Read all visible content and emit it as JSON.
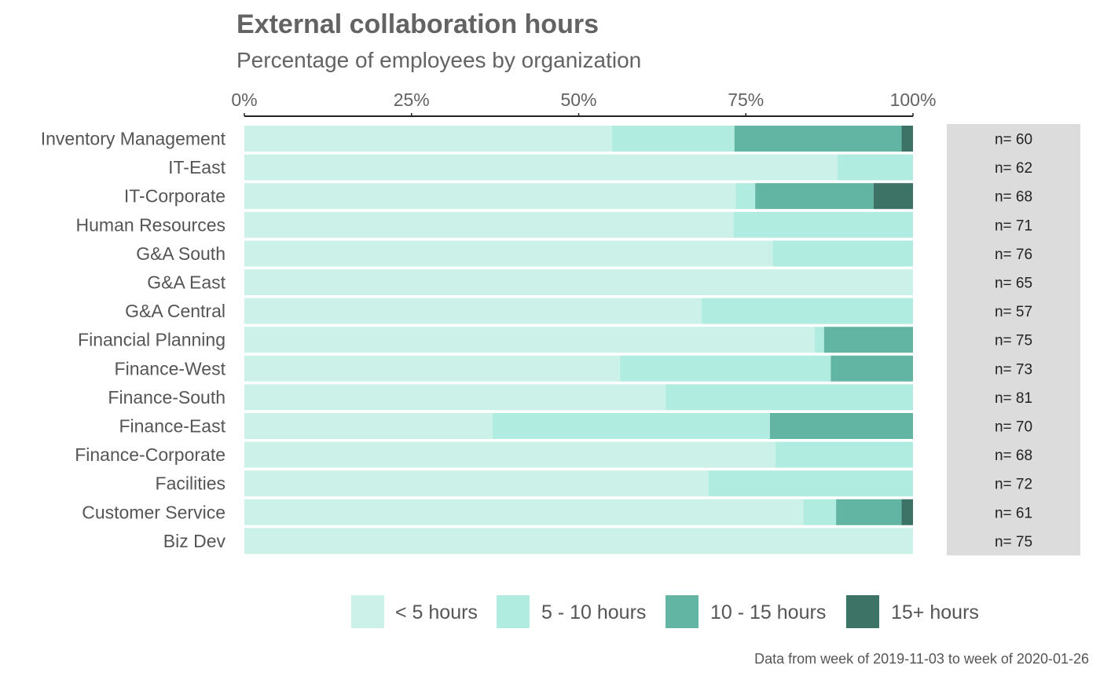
{
  "chart_data": {
    "type": "bar",
    "orientation": "horizontal",
    "stacked": true,
    "title": "External collaboration hours",
    "subtitle": "Percentage of employees by organization",
    "caption": "Data from week of 2019-11-03 to week of 2020-01-26",
    "xlim": [
      0,
      100
    ],
    "x_ticks": [
      "0%",
      "25%",
      "50%",
      "75%",
      "100%"
    ],
    "x_tick_values": [
      0,
      25,
      50,
      75,
      100
    ],
    "x_axis_position": "top",
    "grid": false,
    "legend_position": "bottom",
    "categories": [
      "Inventory Management",
      "IT-East",
      "IT-Corporate",
      "Human Resources",
      "G&A South",
      "G&A East",
      "G&A Central",
      "Financial Planning",
      "Finance-West",
      "Finance-South",
      "Finance-East",
      "Finance-Corporate",
      "Facilities",
      "Customer Service",
      "Biz Dev"
    ],
    "n_labels": [
      "n= 60",
      "n= 62",
      "n= 68",
      "n= 71",
      "n= 76",
      "n= 65",
      "n= 57",
      "n= 75",
      "n= 73",
      "n= 81",
      "n= 70",
      "n= 68",
      "n= 72",
      "n= 61",
      "n= 75"
    ],
    "series": [
      {
        "name": "< 5 hours",
        "color": "#cbf1e9",
        "values": [
          55,
          88.7,
          73.5,
          73.2,
          79,
          100,
          68.4,
          85.3,
          56.2,
          63,
          37.1,
          79.4,
          69.4,
          83.6,
          100
        ]
      },
      {
        "name": "5 - 10 hours",
        "color": "#b1ece1",
        "values": [
          18.3,
          11.3,
          2.9,
          26.8,
          21,
          0,
          31.6,
          1.4,
          31.5,
          37,
          41.5,
          20.6,
          30.6,
          4.9,
          0
        ]
      },
      {
        "name": "10 - 15 hours",
        "color": "#62b4a3",
        "values": [
          25,
          0,
          17.7,
          0,
          0,
          0,
          0,
          13.3,
          12.3,
          0,
          21.4,
          0,
          0,
          9.8,
          0
        ]
      },
      {
        "name": "15+ hours",
        "color": "#3d7266",
        "values": [
          1.7,
          0,
          5.9,
          0,
          0,
          0,
          0,
          0,
          0,
          0,
          0,
          0,
          0,
          1.7,
          0
        ]
      }
    ]
  }
}
